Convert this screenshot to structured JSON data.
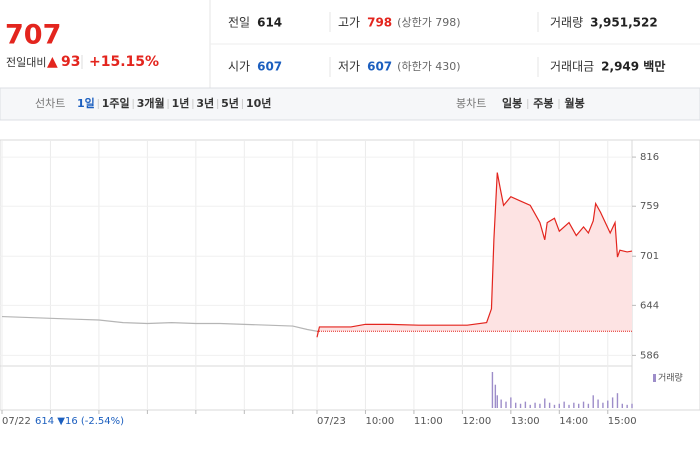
{
  "header": {
    "price": "707",
    "change_label": "전일대비",
    "change_arrow": "▲",
    "change": "93",
    "change_pct": "+15.15%",
    "cells": [
      [
        {
          "label": "전일",
          "value": "614"
        },
        {
          "label": "고가",
          "value": "798",
          "extra": "(상한가 798)"
        },
        {
          "label": "거래량",
          "value": "3,951,522"
        }
      ],
      [
        {
          "label": "시가",
          "value": "607"
        },
        {
          "label": "저가",
          "value": "607",
          "extra": "(하한가 430)"
        },
        {
          "label": "거래대금",
          "value": "2,949 백만"
        }
      ]
    ]
  },
  "toolbar": {
    "line_label": "선차트",
    "periods": [
      "1일",
      "1주일",
      "3개월",
      "1년",
      "3년",
      "5년",
      "10년"
    ],
    "selected": "1일",
    "candle_label": "봉차트",
    "candle_periods": [
      "일봉",
      "주봉",
      "월봉"
    ]
  },
  "chart_data": {
    "type": "line",
    "prev_info": "614 ▼16 (-2.54%)",
    "reference_line": 614,
    "ylim": [
      576,
      830
    ],
    "yticks": [
      586,
      644,
      701,
      759,
      816
    ],
    "xlim": [
      0,
      13
    ],
    "xticks": [
      {
        "value": 0,
        "label": "07/22"
      },
      {
        "value": 1,
        "label": null
      },
      {
        "value": 2,
        "label": null
      },
      {
        "value": 3,
        "label": null
      },
      {
        "value": 4,
        "label": null
      },
      {
        "value": 5,
        "label": null
      },
      {
        "value": 6,
        "label": null
      },
      {
        "value": 6.5,
        "label": "07/23"
      },
      {
        "value": 7.5,
        "label": "10:00"
      },
      {
        "value": 8.5,
        "label": "11:00"
      },
      {
        "value": 9.5,
        "label": "12:00"
      },
      {
        "value": 10.5,
        "label": "13:00"
      },
      {
        "value": 11.5,
        "label": "14:00"
      },
      {
        "value": 12.5,
        "label": "15:00"
      }
    ],
    "series": [
      {
        "color": "#e3251e",
        "x": [
          6.5,
          6.55,
          7.2,
          7.5,
          8.0,
          8.6,
          9.0,
          9.6,
          10.0,
          10.1,
          10.15,
          10.22,
          10.28,
          10.35,
          10.5,
          10.7,
          10.9,
          11.0,
          11.1,
          11.2,
          11.25,
          11.4,
          11.5,
          11.7,
          11.85,
          12.0,
          12.1,
          12.2,
          12.25,
          12.35,
          12.45,
          12.55,
          12.65,
          12.7,
          12.75,
          12.9,
          13.0
        ],
        "values": [
          607,
          619,
          619,
          622,
          622,
          621,
          621,
          621,
          624,
          640,
          720,
          798,
          780,
          760,
          770,
          765,
          760,
          750,
          740,
          720,
          740,
          745,
          730,
          740,
          725,
          735,
          728,
          742,
          762,
          752,
          740,
          728,
          740,
          700,
          708,
          706,
          707
        ]
      },
      {
        "color": "#b5b5b5",
        "x": [
          0,
          0.5,
          1,
          1.5,
          2,
          2.5,
          3,
          3.5,
          4,
          4.5,
          5,
          5.5,
          6,
          6.3,
          6.5
        ],
        "values": [
          631,
          630,
          629,
          628,
          627,
          624,
          623,
          624,
          623,
          623,
          622,
          621,
          620,
          616,
          614
        ]
      }
    ],
    "volume": {
      "name": "거래량",
      "color": "#9d8dc9",
      "x": [
        10.12,
        10.18,
        10.22,
        10.3,
        10.4,
        10.5,
        10.6,
        10.7,
        10.8,
        10.9,
        11.0,
        11.1,
        11.2,
        11.3,
        11.4,
        11.5,
        11.6,
        11.7,
        11.8,
        11.9,
        12.0,
        12.1,
        12.2,
        12.3,
        12.4,
        12.5,
        12.6,
        12.7,
        12.8,
        12.9,
        13.0
      ],
      "values": [
        34,
        22,
        12,
        8,
        6,
        10,
        5,
        4,
        6,
        3,
        5,
        4,
        9,
        5,
        3,
        4,
        6,
        3,
        5,
        4,
        6,
        4,
        12,
        8,
        5,
        7,
        10,
        14,
        4,
        3,
        4
      ]
    }
  }
}
